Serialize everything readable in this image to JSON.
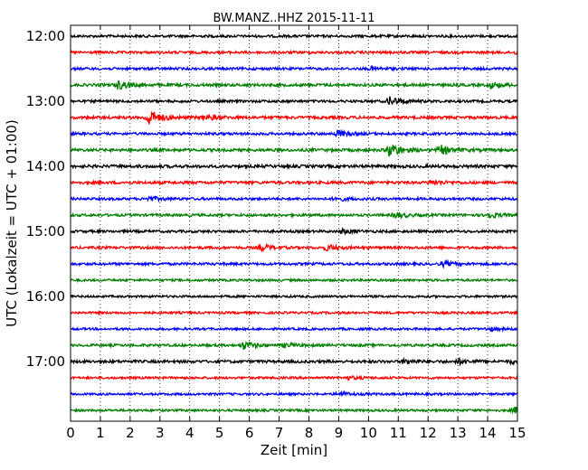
{
  "chart_data": {
    "type": "line",
    "title": "BW.MANZ..HHZ 2015-11-11",
    "xlabel": "Zeit  [min]",
    "ylabel": "UTC (Lokalzeit = UTC + 01:00)",
    "xlim": [
      0,
      15
    ],
    "x_ticks": [
      "0",
      "1",
      "2",
      "3",
      "4",
      "5",
      "6",
      "7",
      "8",
      "9",
      "10",
      "11",
      "12",
      "13",
      "14",
      "15"
    ],
    "y_tick_labels": [
      "12:00",
      "13:00",
      "14:00",
      "15:00",
      "16:00",
      "17:00"
    ],
    "grid": "vertical dotted",
    "trace_colors": [
      "#000000",
      "#ff0000",
      "#0000ff",
      "#008000"
    ],
    "traces": [
      {
        "start": "12:00",
        "color": "#000000",
        "noise": 0.25,
        "events": []
      },
      {
        "start": "12:15",
        "color": "#ff0000",
        "noise": 0.25,
        "events": [
          {
            "t": 15.0,
            "amp": 0.5
          }
        ]
      },
      {
        "start": "12:30",
        "color": "#0000ff",
        "noise": 0.25,
        "events": [
          {
            "t": 10.1,
            "amp": 0.35
          }
        ]
      },
      {
        "start": "12:45",
        "color": "#008000",
        "noise": 0.28,
        "events": [
          {
            "t": 1.6,
            "amp": 0.8
          },
          {
            "t": 14.1,
            "amp": 0.6
          }
        ]
      },
      {
        "start": "13:00",
        "color": "#000000",
        "noise": 0.25,
        "events": [
          {
            "t": 10.7,
            "amp": 0.9
          }
        ]
      },
      {
        "start": "13:15",
        "color": "#ff0000",
        "noise": 0.28,
        "events": [
          {
            "t": 2.6,
            "amp": 1.6
          },
          {
            "t": 4.5,
            "amp": 0.6
          }
        ]
      },
      {
        "start": "13:30",
        "color": "#0000ff",
        "noise": 0.25,
        "events": [
          {
            "t": 8.95,
            "amp": 0.6
          }
        ]
      },
      {
        "start": "13:45",
        "color": "#008000",
        "noise": 0.28,
        "events": [
          {
            "t": 10.7,
            "amp": 1.5
          },
          {
            "t": 12.4,
            "amp": 0.9
          }
        ]
      },
      {
        "start": "14:00",
        "color": "#000000",
        "noise": 0.3,
        "events": []
      },
      {
        "start": "14:15",
        "color": "#ff0000",
        "noise": 0.28,
        "events": [
          {
            "t": 12.1,
            "amp": 0.45
          }
        ]
      },
      {
        "start": "14:30",
        "color": "#0000ff",
        "noise": 0.25,
        "events": [
          {
            "t": 2.6,
            "amp": 0.4
          },
          {
            "t": 8.9,
            "amp": 0.35
          }
        ]
      },
      {
        "start": "14:45",
        "color": "#008000",
        "noise": 0.25,
        "events": [
          {
            "t": 10.9,
            "amp": 0.55
          },
          {
            "t": 14.0,
            "amp": 0.55
          }
        ]
      },
      {
        "start": "15:00",
        "color": "#000000",
        "noise": 0.25,
        "events": [
          {
            "t": 9.1,
            "amp": 0.4
          }
        ]
      },
      {
        "start": "15:15",
        "color": "#ff0000",
        "noise": 0.25,
        "events": [
          {
            "t": 6.4,
            "amp": 0.6
          },
          {
            "t": 8.6,
            "amp": 0.55
          }
        ]
      },
      {
        "start": "15:30",
        "color": "#0000ff",
        "noise": 0.25,
        "events": [
          {
            "t": 12.5,
            "amp": 0.4
          }
        ]
      },
      {
        "start": "15:45",
        "color": "#008000",
        "noise": 0.22,
        "events": []
      },
      {
        "start": "16:00",
        "color": "#000000",
        "noise": 0.22,
        "events": []
      },
      {
        "start": "16:15",
        "color": "#ff0000",
        "noise": 0.22,
        "events": []
      },
      {
        "start": "16:30",
        "color": "#0000ff",
        "noise": 0.22,
        "events": [
          {
            "t": 14.0,
            "amp": 0.35
          }
        ]
      },
      {
        "start": "16:45",
        "color": "#008000",
        "noise": 0.25,
        "events": [
          {
            "t": 5.8,
            "amp": 0.75
          },
          {
            "t": 7.2,
            "amp": 0.35
          }
        ]
      },
      {
        "start": "17:00",
        "color": "#000000",
        "noise": 0.28,
        "events": [
          {
            "t": 11.2,
            "amp": 0.45
          },
          {
            "t": 13.0,
            "amp": 0.45
          },
          {
            "t": 14.8,
            "amp": 0.35
          }
        ]
      },
      {
        "start": "17:15",
        "color": "#ff0000",
        "noise": 0.22,
        "events": [
          {
            "t": 9.3,
            "amp": 0.3
          }
        ]
      },
      {
        "start": "17:30",
        "color": "#0000ff",
        "noise": 0.22,
        "events": [
          {
            "t": 9.0,
            "amp": 0.45
          }
        ]
      },
      {
        "start": "17:45",
        "color": "#008000",
        "noise": 0.22,
        "events": [
          {
            "t": 14.9,
            "amp": 0.6
          }
        ]
      }
    ]
  }
}
